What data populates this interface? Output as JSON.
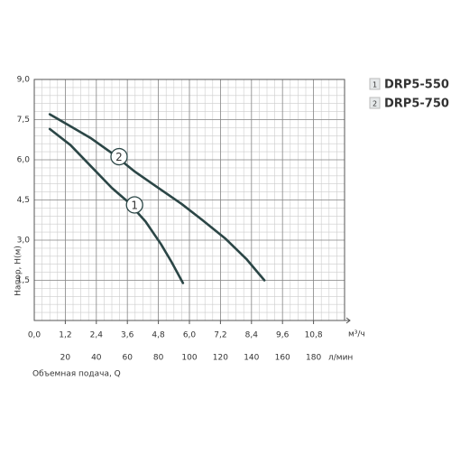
{
  "chart_data": {
    "type": "line",
    "y_label": "Напор, H(м)",
    "x_label": "Объемная подача, Q",
    "x_unit": "м³/ч",
    "x2_unit": "л/мин",
    "xlim": [
      0,
      12
    ],
    "xticks": [
      {
        "value": 0,
        "label": "0,0"
      },
      {
        "value": 1.2,
        "label": "1,2"
      },
      {
        "value": 2.4,
        "label": "2,4"
      },
      {
        "value": 3.6,
        "label": "3,6"
      },
      {
        "value": 4.8,
        "label": "4,8"
      },
      {
        "value": 6,
        "label": "6,0"
      },
      {
        "value": 7.2,
        "label": "7,2"
      },
      {
        "value": 8.4,
        "label": "8,4"
      },
      {
        "value": 9.6,
        "label": "9,6"
      },
      {
        "value": 10.8,
        "label": "10,8"
      }
    ],
    "x2lim": [
      0,
      200
    ],
    "x2ticks": [
      20,
      40,
      60,
      80,
      100,
      120,
      140,
      160,
      180
    ],
    "ylim": [
      0,
      9
    ],
    "yticks": [
      {
        "value": 1.5,
        "label": "1,5"
      },
      {
        "value": 3,
        "label": "3,0"
      },
      {
        "value": 4.5,
        "label": "4,5"
      },
      {
        "value": 6,
        "label": "6,0"
      },
      {
        "value": 7.5,
        "label": "7,5"
      },
      {
        "value": 9,
        "label": "9,0"
      }
    ],
    "grid": true,
    "minor_grid": true,
    "series": [
      {
        "name": "DRP5-550",
        "marker": "1",
        "color": "#2b4646",
        "x": [
          0.6,
          1.4,
          2.2,
          3.0,
          3.6,
          4.3,
          4.9,
          5.3,
          5.75
        ],
        "values": [
          7.15,
          6.55,
          5.75,
          4.95,
          4.45,
          3.7,
          2.85,
          2.2,
          1.4
        ]
      },
      {
        "name": "DRP5-750",
        "marker": "2",
        "color": "#2b4646",
        "x": [
          0.6,
          1.4,
          2.2,
          3.0,
          3.9,
          4.8,
          5.7,
          6.5,
          7.4,
          8.2,
          8.9
        ],
        "values": [
          7.7,
          7.25,
          6.8,
          6.25,
          5.55,
          4.95,
          4.35,
          3.75,
          3.05,
          2.3,
          1.5
        ]
      }
    ]
  }
}
